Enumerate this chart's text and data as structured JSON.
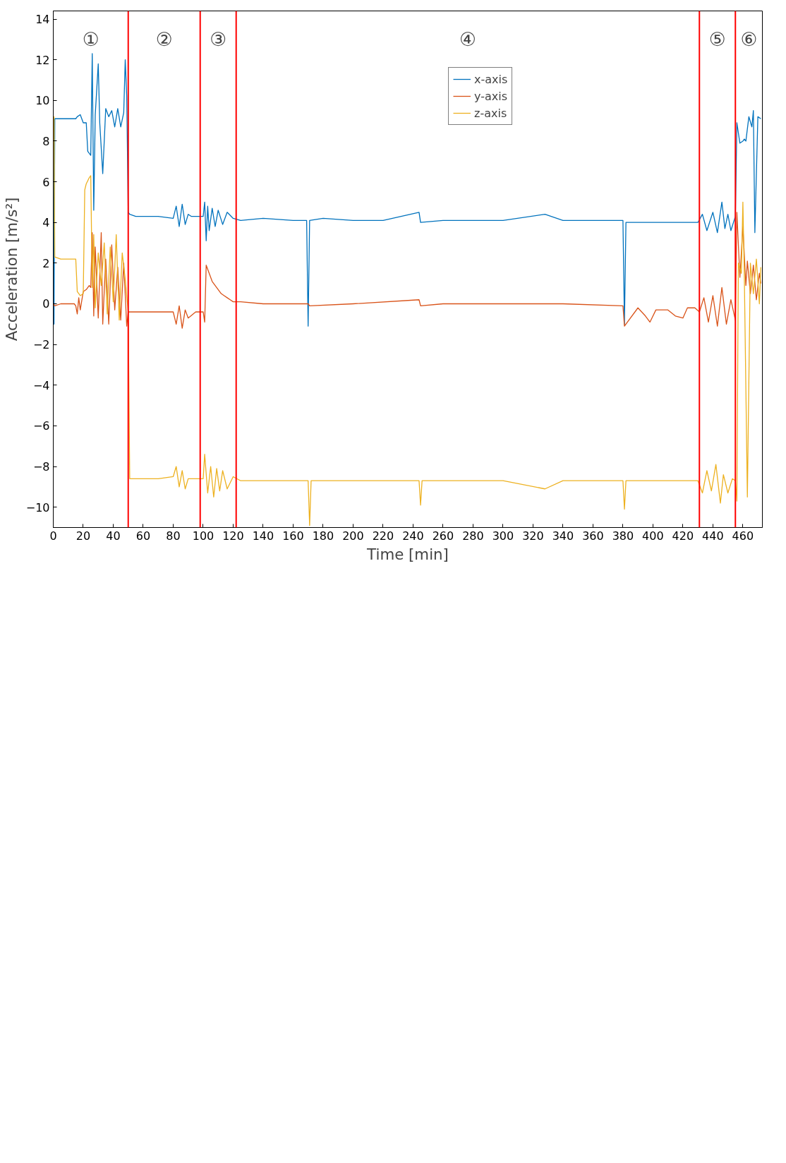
{
  "chart_data": {
    "type": "line",
    "xlabel": "Time [min]",
    "ylabel": "Acceleration [m/s²]",
    "xlim": [
      0,
      473
    ],
    "ylim": [
      -11,
      14.4
    ],
    "xticks": [
      0,
      20,
      40,
      60,
      80,
      100,
      120,
      140,
      160,
      180,
      200,
      220,
      240,
      260,
      280,
      300,
      320,
      340,
      360,
      380,
      400,
      420,
      440,
      460
    ],
    "yticks": [
      {
        "value": -10,
        "label": "−10"
      },
      {
        "value": -8,
        "label": "−8"
      },
      {
        "value": -6,
        "label": "−6"
      },
      {
        "value": -4,
        "label": "−4"
      },
      {
        "value": -2,
        "label": "−2"
      },
      0,
      2,
      4,
      6,
      8,
      10,
      12,
      14
    ],
    "grid": false,
    "legend": "top right",
    "marker": "none",
    "line_style": "solid",
    "series": [
      {
        "name": "x-axis",
        "color": "#0072bd",
        "x": [
          0,
          0.5,
          1,
          5,
          10,
          15,
          16,
          18,
          20,
          22,
          23,
          25,
          26,
          27,
          28,
          30,
          31,
          33,
          35,
          37,
          39,
          41,
          43,
          45,
          47,
          48,
          49,
          50,
          51,
          55,
          60,
          70,
          80,
          82,
          84,
          86,
          88,
          90,
          92,
          95,
          98,
          100,
          101,
          102,
          103,
          104,
          106,
          108,
          110,
          113,
          116,
          120,
          125,
          140,
          160,
          169,
          170,
          171,
          180,
          200,
          220,
          244,
          245,
          260,
          300,
          328,
          340,
          380,
          381,
          382,
          400,
          420,
          430,
          433,
          436,
          440,
          443,
          446,
          448,
          450,
          452,
          455,
          456,
          458,
          460,
          461,
          462,
          464,
          466,
          467,
          468,
          470,
          472
        ],
        "values": [
          9.1,
          -1.0,
          9.1,
          9.1,
          9.1,
          9.1,
          9.2,
          9.3,
          8.9,
          8.9,
          7.5,
          7.3,
          12.3,
          4.6,
          9.3,
          11.8,
          8.9,
          6.4,
          9.6,
          9.2,
          9.5,
          8.7,
          9.6,
          8.7,
          9.4,
          12.0,
          10.2,
          4.5,
          4.4,
          4.3,
          4.3,
          4.3,
          4.2,
          4.8,
          3.8,
          4.9,
          3.9,
          4.4,
          4.3,
          4.3,
          4.3,
          4.3,
          5.0,
          3.1,
          4.8,
          3.6,
          4.7,
          3.8,
          4.6,
          3.9,
          4.5,
          4.2,
          4.1,
          4.2,
          4.1,
          4.1,
          -1.1,
          4.1,
          4.2,
          4.1,
          4.1,
          4.5,
          4.0,
          4.1,
          4.1,
          4.4,
          4.1,
          4.1,
          -1.0,
          4.0,
          4.0,
          4.0,
          4.0,
          4.4,
          3.6,
          4.5,
          3.5,
          5.0,
          3.7,
          4.4,
          3.6,
          4.3,
          8.9,
          7.9,
          8.0,
          8.1,
          8.0,
          9.2,
          8.7,
          9.5,
          3.5,
          9.2,
          9.1
        ]
      },
      {
        "name": "y-axis",
        "color": "#d95319",
        "x": [
          0,
          1,
          5,
          10,
          14,
          15,
          16,
          17,
          18,
          20,
          22,
          24,
          25,
          26,
          27,
          28,
          30,
          32,
          33,
          35,
          37,
          39,
          41,
          43,
          45,
          47,
          49,
          50,
          51,
          60,
          70,
          80,
          82,
          84,
          86,
          88,
          90,
          95,
          100,
          101,
          102,
          104,
          106,
          108,
          110,
          112,
          114,
          116,
          118,
          120,
          125,
          140,
          160,
          170,
          171,
          200,
          244,
          245,
          260,
          300,
          340,
          380,
          381,
          390,
          395,
          398,
          402,
          410,
          415,
          420,
          423,
          428,
          431,
          434,
          437,
          440,
          443,
          446,
          449,
          452,
          455,
          456,
          458,
          460,
          462,
          463,
          465,
          467,
          469,
          471,
          472
        ],
        "values": [
          0.0,
          -0.1,
          0.0,
          0.0,
          0.0,
          -0.1,
          -0.5,
          0.3,
          -0.3,
          0.6,
          0.7,
          0.9,
          0.8,
          3.5,
          -0.6,
          2.8,
          -0.7,
          3.5,
          -1.0,
          2.2,
          -1.0,
          2.9,
          -0.3,
          1.8,
          -0.8,
          2.0,
          -1.1,
          -0.4,
          -0.4,
          -0.4,
          -0.4,
          -0.4,
          -1.0,
          -0.1,
          -1.2,
          -0.3,
          -0.7,
          -0.4,
          -0.4,
          -0.9,
          1.9,
          1.5,
          1.1,
          0.9,
          0.7,
          0.5,
          0.4,
          0.3,
          0.2,
          0.1,
          0.1,
          0.0,
          0.0,
          0.0,
          -0.1,
          0.0,
          0.2,
          -0.1,
          0.0,
          0.0,
          0.0,
          -0.1,
          -1.1,
          -0.2,
          -0.6,
          -0.9,
          -0.3,
          -0.3,
          -0.6,
          -0.7,
          -0.2,
          -0.2,
          -0.4,
          0.3,
          -0.9,
          0.4,
          -1.1,
          0.8,
          -1.0,
          0.2,
          -0.8,
          4.5,
          1.3,
          3.8,
          0.9,
          2.1,
          0.5,
          1.9,
          0.2,
          1.5,
          1.0
        ]
      },
      {
        "name": "z-axis",
        "color": "#edb120",
        "x": [
          0,
          0.5,
          1,
          5,
          10,
          15,
          16,
          18,
          20,
          21,
          22,
          24,
          25,
          26,
          27,
          28,
          30,
          32,
          34,
          36,
          38,
          40,
          42,
          44,
          46,
          48,
          50,
          51,
          60,
          70,
          80,
          82,
          84,
          86,
          88,
          90,
          95,
          100,
          101,
          103,
          105,
          107,
          109,
          111,
          113,
          116,
          120,
          125,
          140,
          160,
          170,
          171,
          172,
          200,
          220,
          244,
          245,
          246,
          260,
          300,
          328,
          340,
          380,
          381,
          382,
          400,
          420,
          430,
          433,
          436,
          439,
          442,
          445,
          447,
          450,
          453,
          455,
          456,
          457,
          459,
          460,
          461,
          463,
          465,
          467,
          469,
          471,
          472
        ],
        "values": [
          9.0,
          9.2,
          2.3,
          2.2,
          2.2,
          2.2,
          0.6,
          0.4,
          0.5,
          5.6,
          5.9,
          6.2,
          6.3,
          0.8,
          3.4,
          -0.2,
          2.5,
          0.9,
          3.0,
          -0.5,
          2.8,
          0.1,
          3.4,
          -0.8,
          2.5,
          1.2,
          -0.4,
          -8.6,
          -8.6,
          -8.6,
          -8.5,
          -8.0,
          -9.0,
          -8.2,
          -9.1,
          -8.6,
          -8.6,
          -8.6,
          -7.4,
          -9.3,
          -8.0,
          -9.5,
          -8.1,
          -9.2,
          -8.2,
          -9.1,
          -8.5,
          -8.7,
          -8.7,
          -8.7,
          -8.7,
          -10.9,
          -8.7,
          -8.7,
          -8.7,
          -8.7,
          -9.9,
          -8.7,
          -8.7,
          -8.7,
          -9.1,
          -8.7,
          -8.7,
          -10.1,
          -8.7,
          -8.7,
          -8.7,
          -8.7,
          -9.3,
          -8.2,
          -9.2,
          -7.9,
          -9.8,
          -8.4,
          -9.3,
          -8.6,
          -8.7,
          -9.7,
          2.0,
          1.5,
          5.0,
          1.2,
          -9.5,
          2.0,
          0.5,
          2.2,
          0.0,
          1.8
        ]
      }
    ],
    "ref_lines": [
      {
        "axis": "x",
        "value": 50,
        "color": "#ff0000"
      },
      {
        "axis": "x",
        "value": 98,
        "color": "#ff0000"
      },
      {
        "axis": "x",
        "value": 122,
        "color": "#ff0000"
      },
      {
        "axis": "x",
        "value": 431,
        "color": "#ff0000"
      },
      {
        "axis": "x",
        "value": 455,
        "color": "#ff0000"
      }
    ],
    "annotations": [
      "①",
      "②",
      "③",
      "④",
      "⑤",
      "⑥"
    ]
  }
}
